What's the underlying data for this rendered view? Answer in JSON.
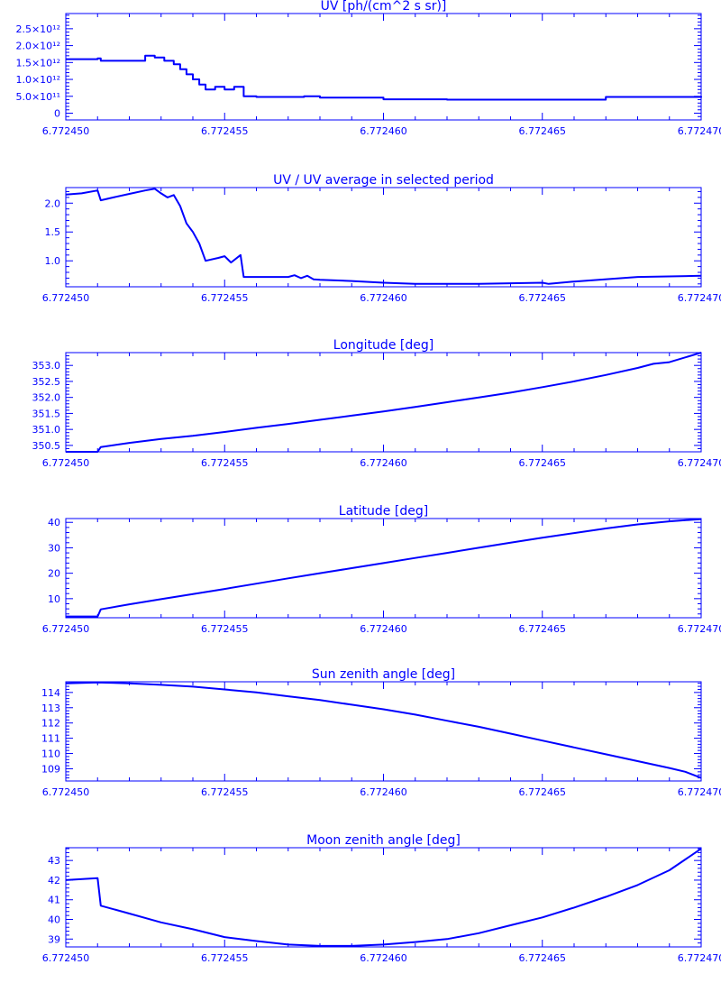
{
  "colors": {
    "ink": "#0000ff",
    "background": "#ffffff"
  },
  "chart_data": [
    {
      "type": "line",
      "title": "UV [ph/(cm^2 s sr)]",
      "xlabel": "",
      "ylabel": "",
      "xlim": [
        6.77245,
        6.77247
      ],
      "ylim": [
        -200000000000.0,
        2950000000000.0
      ],
      "x_ticks": [
        6.77245,
        6.772455,
        6.77246,
        6.772465,
        6.77247
      ],
      "x_tick_labels": [
        "6.772450",
        "6.772455",
        "6.772460",
        "6.772465",
        "6.772470"
      ],
      "y_ticks": [
        0,
        500000000000.0,
        1000000000000.0,
        1500000000000.0,
        2000000000000.0,
        2500000000000.0
      ],
      "y_tick_labels": [
        "0",
        "5.0×10¹¹",
        "1.0×10¹²",
        "1.5×10¹²",
        "2.0×10¹²",
        "2.5×10¹²"
      ],
      "step": true,
      "series": [
        {
          "x": [
            6.77245,
            6.772451,
            6.7724511,
            6.7724525,
            6.7724528,
            6.7724531,
            6.7724534,
            6.7724536,
            6.7724538,
            6.772454,
            6.7724542,
            6.7724544,
            6.7724547,
            6.772455,
            6.7724553,
            6.7724556,
            6.772456,
            6.772457,
            6.7724575,
            6.772458,
            6.77246,
            6.772462,
            6.772465,
            6.772467,
            6.77247
          ],
          "y": [
            1600000000000.0,
            1620000000000.0,
            1550000000000.0,
            1700000000000.0,
            1650000000000.0,
            1550000000000.0,
            1450000000000.0,
            1300000000000.0,
            1150000000000.0,
            1000000000000.0,
            850000000000.0,
            700000000000.0,
            780000000000.0,
            700000000000.0,
            780000000000.0,
            500000000000.0,
            480000000000.0,
            480000000000.0,
            500000000000.0,
            460000000000.0,
            410000000000.0,
            400000000000.0,
            400000000000.0,
            480000000000.0,
            500000000000.0
          ]
        }
      ]
    },
    {
      "type": "line",
      "title": "UV / UV average in selected period",
      "xlabel": "",
      "ylabel": "",
      "xlim": [
        6.77245,
        6.77247
      ],
      "ylim": [
        0.55,
        2.27
      ],
      "x_ticks": [
        6.77245,
        6.772455,
        6.77246,
        6.772465,
        6.77247
      ],
      "x_tick_labels": [
        "6.772450",
        "6.772455",
        "6.772460",
        "6.772465",
        "6.772470"
      ],
      "y_ticks": [
        1.0,
        1.5,
        2.0
      ],
      "y_tick_labels": [
        "1.0",
        "1.5",
        "2.0"
      ],
      "series": [
        {
          "x": [
            6.77245,
            6.7724505,
            6.772451,
            6.7724511,
            6.7724515,
            6.772452,
            6.7724525,
            6.7724528,
            6.772453,
            6.7724532,
            6.7724534,
            6.7724536,
            6.7724538,
            6.772454,
            6.7724542,
            6.7724544,
            6.7724548,
            6.772455,
            6.7724552,
            6.7724555,
            6.7724556,
            6.772456,
            6.772457,
            6.7724572,
            6.7724574,
            6.7724576,
            6.7724578,
            6.772458,
            6.772459,
            6.77246,
            6.772461,
            6.772463,
            6.772465,
            6.7724652,
            6.772466,
            6.772468,
            6.77247
          ],
          "y": [
            2.15,
            2.17,
            2.22,
            2.05,
            2.1,
            2.16,
            2.22,
            2.25,
            2.17,
            2.1,
            2.14,
            1.95,
            1.65,
            1.5,
            1.3,
            1.0,
            1.05,
            1.08,
            0.97,
            1.1,
            0.72,
            0.72,
            0.72,
            0.75,
            0.7,
            0.74,
            0.68,
            0.67,
            0.65,
            0.62,
            0.6,
            0.6,
            0.62,
            0.6,
            0.64,
            0.72,
            0.74
          ]
        }
      ]
    },
    {
      "type": "line",
      "title": "Longitude [deg]",
      "xlabel": "",
      "ylabel": "",
      "xlim": [
        6.77245,
        6.77247
      ],
      "ylim": [
        350.3,
        353.4
      ],
      "x_ticks": [
        6.77245,
        6.772455,
        6.77246,
        6.772465,
        6.77247
      ],
      "x_tick_labels": [
        "6.772450",
        "6.772455",
        "6.772460",
        "6.772465",
        "6.772470"
      ],
      "y_ticks": [
        350.5,
        351.0,
        351.5,
        352.0,
        352.5,
        353.0
      ],
      "y_tick_labels": [
        "350.5",
        "351.0",
        "351.5",
        "352.0",
        "352.5",
        "353.0"
      ],
      "series": [
        {
          "x": [
            6.77245,
            6.772451,
            6.7724511,
            6.772452,
            6.772453,
            6.772454,
            6.772455,
            6.772456,
            6.772457,
            6.772458,
            6.772459,
            6.77246,
            6.772461,
            6.772462,
            6.772463,
            6.772464,
            6.772465,
            6.772466,
            6.772467,
            6.772468,
            6.7724685,
            6.772469,
            6.77247
          ],
          "y": [
            350.3,
            350.3,
            350.45,
            350.58,
            350.7,
            350.8,
            350.92,
            351.05,
            351.17,
            351.3,
            351.43,
            351.56,
            351.7,
            351.85,
            352.0,
            352.15,
            352.32,
            352.5,
            352.7,
            352.92,
            353.05,
            353.1,
            353.4
          ]
        }
      ]
    },
    {
      "type": "line",
      "title": "Latitude [deg]",
      "xlabel": "",
      "ylabel": "",
      "xlim": [
        6.77245,
        6.77247
      ],
      "ylim": [
        2.5,
        41.5
      ],
      "x_ticks": [
        6.77245,
        6.772455,
        6.77246,
        6.772465,
        6.77247
      ],
      "x_tick_labels": [
        "6.772450",
        "6.772455",
        "6.772460",
        "6.772465",
        "6.772470"
      ],
      "y_ticks": [
        10,
        20,
        30,
        40
      ],
      "y_tick_labels": [
        "10",
        "20",
        "30",
        "40"
      ],
      "series": [
        {
          "x": [
            6.77245,
            6.772451,
            6.7724511,
            6.772452,
            6.772453,
            6.772454,
            6.772455,
            6.772456,
            6.772457,
            6.772458,
            6.772459,
            6.77246,
            6.772461,
            6.772462,
            6.772463,
            6.772464,
            6.772465,
            6.772466,
            6.772467,
            6.772468,
            6.772469,
            6.77247
          ],
          "y": [
            3.0,
            3.0,
            5.8,
            7.8,
            9.8,
            11.8,
            13.8,
            15.9,
            18.0,
            20.0,
            22.0,
            24.0,
            26.0,
            28.0,
            30.0,
            32.0,
            34.0,
            35.8,
            37.6,
            39.2,
            40.4,
            41.3
          ]
        }
      ]
    },
    {
      "type": "line",
      "title": "Sun zenith angle [deg]",
      "xlabel": "",
      "ylabel": "",
      "xlim": [
        6.77245,
        6.77247
      ],
      "ylim": [
        108.2,
        114.7
      ],
      "x_ticks": [
        6.77245,
        6.772455,
        6.77246,
        6.772465,
        6.77247
      ],
      "x_tick_labels": [
        "6.772450",
        "6.772455",
        "6.772460",
        "6.772465",
        "6.772470"
      ],
      "y_ticks": [
        109,
        110,
        111,
        112,
        113,
        114
      ],
      "y_tick_labels": [
        "109",
        "110",
        "111",
        "112",
        "113",
        "114"
      ],
      "series": [
        {
          "x": [
            6.77245,
            6.772451,
            6.772452,
            6.772453,
            6.772454,
            6.772455,
            6.772456,
            6.772457,
            6.772458,
            6.772459,
            6.77246,
            6.772461,
            6.772462,
            6.772463,
            6.772464,
            6.772465,
            6.772466,
            6.772467,
            6.772468,
            6.772469,
            6.7724695,
            6.77247
          ],
          "y": [
            114.6,
            114.65,
            114.6,
            114.5,
            114.38,
            114.2,
            114.0,
            113.75,
            113.5,
            113.2,
            112.9,
            112.55,
            112.15,
            111.75,
            111.3,
            110.85,
            110.4,
            109.95,
            109.5,
            109.05,
            108.8,
            108.4
          ]
        }
      ]
    },
    {
      "type": "line",
      "title": "Moon zenith angle [deg]",
      "xlabel": "",
      "ylabel": "",
      "xlim": [
        6.77245,
        6.77247
      ],
      "ylim": [
        38.6,
        43.65
      ],
      "x_ticks": [
        6.77245,
        6.772455,
        6.77246,
        6.772465,
        6.77247
      ],
      "x_tick_labels": [
        "6.772450",
        "6.772455",
        "6.772460",
        "6.772465",
        "6.772470"
      ],
      "y_ticks": [
        39,
        40,
        41,
        42,
        43
      ],
      "y_tick_labels": [
        "39",
        "40",
        "41",
        "42",
        "43"
      ],
      "series": [
        {
          "x": [
            6.77245,
            6.772451,
            6.7724511,
            6.772452,
            6.772453,
            6.772454,
            6.772455,
            6.772456,
            6.772457,
            6.772458,
            6.772459,
            6.77246,
            6.772461,
            6.772462,
            6.772463,
            6.772464,
            6.772465,
            6.772466,
            6.772467,
            6.772468,
            6.772469,
            6.77247
          ],
          "y": [
            42.0,
            42.1,
            40.7,
            40.3,
            39.85,
            39.5,
            39.1,
            38.9,
            38.72,
            38.65,
            38.65,
            38.72,
            38.85,
            39.0,
            39.3,
            39.7,
            40.1,
            40.6,
            41.15,
            41.75,
            42.5,
            43.6
          ]
        }
      ]
    }
  ]
}
